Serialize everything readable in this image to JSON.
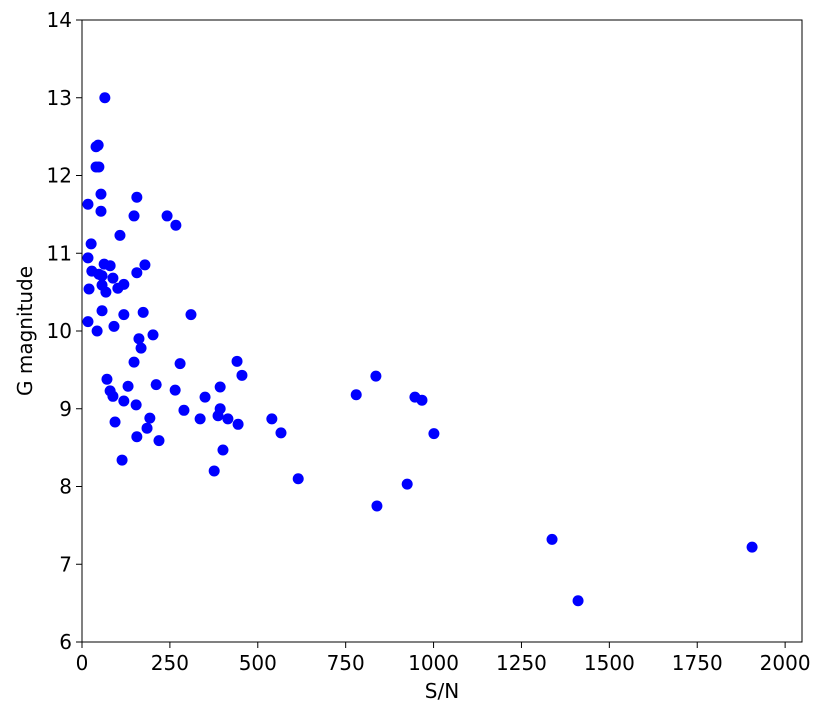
{
  "chart_data": {
    "type": "scatter",
    "xlabel": "S/N",
    "ylabel": "G magnitude",
    "series": [
      {
        "color": "#0000ff",
        "x": [
          65,
          40,
          46,
          40,
          48,
          54,
          17,
          54,
          156,
          148,
          242,
          267,
          108,
          26,
          17,
          28,
          63,
          80,
          179,
          48,
          57,
          57,
          68,
          88,
          102,
          119,
          20,
          156,
          57,
          119,
          174,
          310,
          17,
          91,
          43,
          162,
          202,
          168,
          148,
          279,
          441,
          455,
          71,
          131,
          211,
          265,
          393,
          80,
          88,
          119,
          154,
          350,
          290,
          393,
          387,
          193,
          336,
          415,
          444,
          540,
          94,
          185,
          156,
          219,
          566,
          401,
          114,
          376,
          615,
          780,
          836,
          947,
          967,
          1001,
          925,
          839,
          1337,
          1411,
          1906
        ],
        "values": [
          13.0,
          12.37,
          12.39,
          12.11,
          12.11,
          11.76,
          11.63,
          11.54,
          11.72,
          11.48,
          11.48,
          11.36,
          11.23,
          11.12,
          10.94,
          10.77,
          10.86,
          10.84,
          10.85,
          10.73,
          10.71,
          10.59,
          10.5,
          10.68,
          10.55,
          10.6,
          10.54,
          10.75,
          10.26,
          10.21,
          10.24,
          10.21,
          10.12,
          10.06,
          10.0,
          9.9,
          9.95,
          9.78,
          9.6,
          9.58,
          9.61,
          9.43,
          9.38,
          9.29,
          9.31,
          9.24,
          9.28,
          9.23,
          9.16,
          9.1,
          9.05,
          9.15,
          8.98,
          9.0,
          8.91,
          8.88,
          8.87,
          8.87,
          8.8,
          8.87,
          8.83,
          8.75,
          8.64,
          8.59,
          8.69,
          8.47,
          8.34,
          8.2,
          8.1,
          9.18,
          9.42,
          9.15,
          9.11,
          8.68,
          8.03,
          7.75,
          7.32,
          6.53,
          7.22
        ]
      }
    ],
    "xlim": [
      0,
      2048
    ],
    "ylim": [
      6,
      14
    ],
    "xticks": [
      0,
      250,
      500,
      750,
      1000,
      1250,
      1500,
      1750,
      2000
    ],
    "yticks": [
      6,
      7,
      8,
      9,
      10,
      11,
      12,
      13,
      14
    ]
  }
}
